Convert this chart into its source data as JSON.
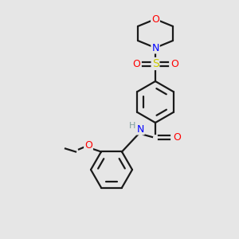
{
  "background_color": "#e6e6e6",
  "bond_color": "#1a1a1a",
  "atom_colors": {
    "O": "#ff0000",
    "N": "#0000ff",
    "S": "#cccc00",
    "H": "#7f9f9f",
    "C": "#1a1a1a"
  },
  "figsize": [
    3.0,
    3.0
  ],
  "dpi": 100,
  "lw": 1.6
}
